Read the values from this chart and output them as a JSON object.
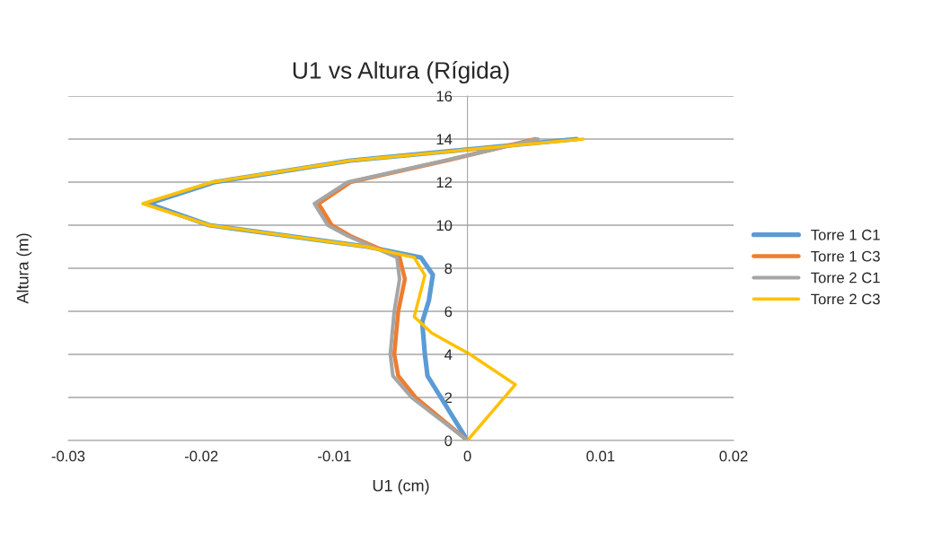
{
  "chart_data": {
    "type": "line",
    "title": "U1 vs Altura (Rígida)",
    "xlabel": "U1 (cm)",
    "ylabel": "Altura (m)",
    "xlim": [
      -0.03,
      0.02
    ],
    "xticks": [
      -0.03,
      -0.02,
      -0.01,
      0,
      0.01,
      0.02
    ],
    "ylim": [
      0,
      16
    ],
    "yticks": [
      0,
      2,
      4,
      6,
      8,
      10,
      12,
      14,
      16
    ],
    "grid": "y",
    "legend": "right",
    "marker": "none",
    "line_style": "solid",
    "series": [
      {
        "name": "Torre 1 C1",
        "color": "#5b9bd5",
        "x": [
          0,
          -0.002,
          -0.003,
          -0.0032,
          -0.0034,
          -0.0029,
          -0.0026,
          -0.0035,
          -0.0075,
          -0.0194,
          -0.024,
          -0.019,
          -0.0088,
          0.0082
        ],
        "values": [
          0,
          2,
          3,
          4,
          5.5,
          6.5,
          7.7,
          8.5,
          9,
          10,
          11,
          12,
          13,
          14
        ]
      },
      {
        "name": "Torre 1 C3",
        "color": "#ed7d31",
        "x": [
          0,
          -0.0039,
          -0.0052,
          -0.0055,
          -0.0052,
          -0.0047,
          -0.0051,
          -0.0088,
          -0.0102,
          -0.0112,
          -0.0088,
          -0.0016,
          0.0051
        ],
        "values": [
          0,
          2,
          3,
          4,
          6,
          7.5,
          8.5,
          9.5,
          10,
          11,
          12,
          13,
          14
        ]
      },
      {
        "name": "Torre 2 C1",
        "color": "#a5a5a5",
        "x": [
          0,
          -0.0042,
          -0.0056,
          -0.0058,
          -0.0055,
          -0.0051,
          -0.0053,
          -0.009,
          -0.0105,
          -0.0115,
          -0.009,
          -0.0017,
          0.0053
        ],
        "values": [
          0,
          2,
          3,
          4,
          6,
          7.5,
          8.5,
          9.5,
          10,
          11,
          12,
          13,
          14
        ]
      },
      {
        "name": "Torre 2 C3",
        "color": "#ffc000",
        "x": [
          0,
          0.0036,
          0.0002,
          -0.0027,
          -0.004,
          -0.0032,
          -0.004,
          -0.0076,
          -0.0194,
          -0.0244,
          -0.0192,
          -0.0088,
          0.0087
        ],
        "values": [
          0,
          2.6,
          4,
          5,
          5.75,
          7.67,
          8.5,
          9,
          10,
          11,
          12,
          13,
          14
        ]
      }
    ]
  }
}
